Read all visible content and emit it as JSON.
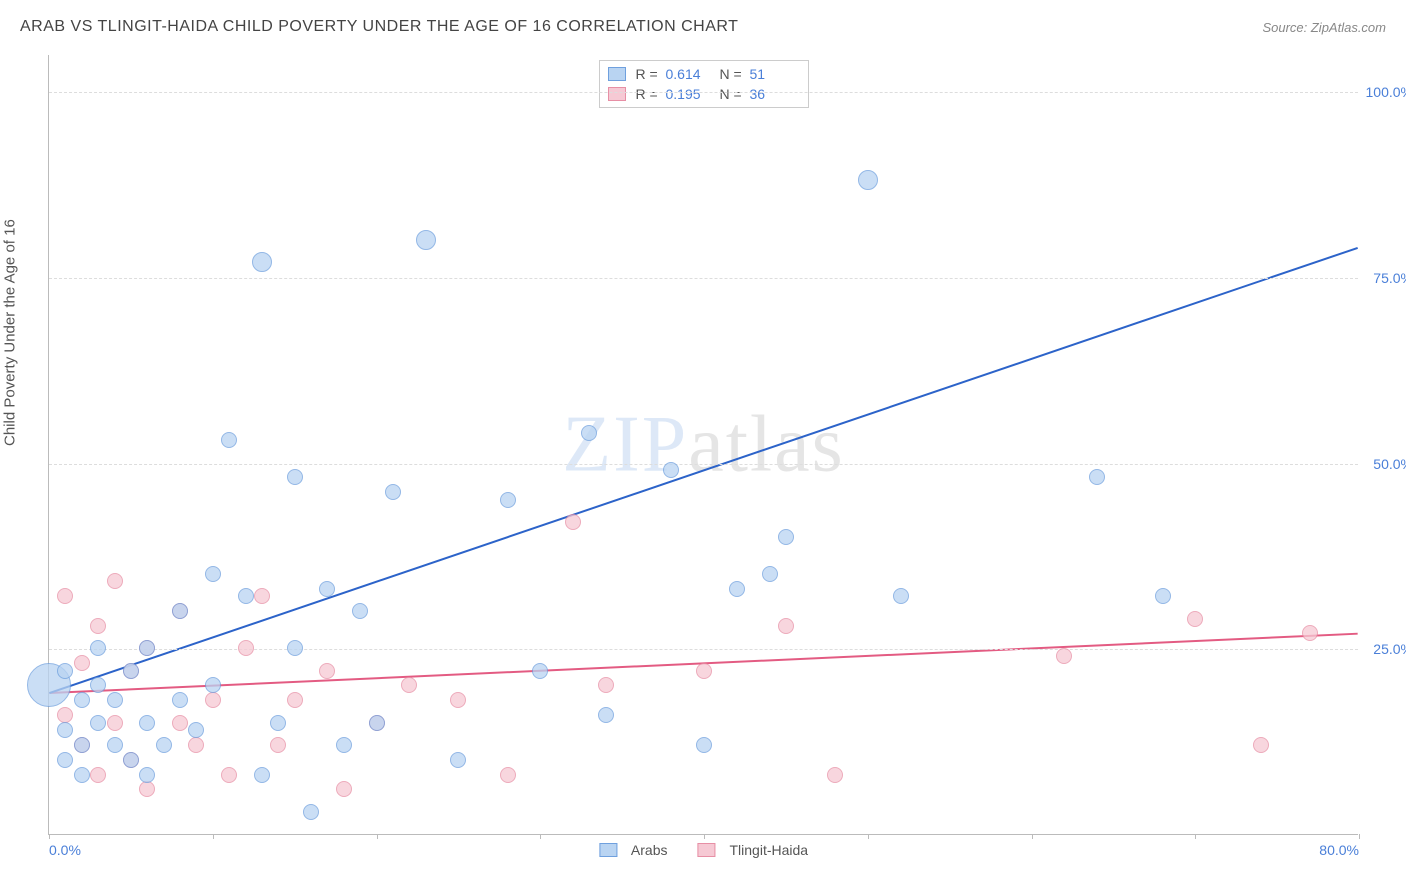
{
  "header": {
    "title": "ARAB VS TLINGIT-HAIDA CHILD POVERTY UNDER THE AGE OF 16 CORRELATION CHART",
    "source_prefix": "Source: ",
    "source": "ZipAtlas.com"
  },
  "watermark": {
    "zip": "ZIP",
    "atlas": "atlas"
  },
  "chart": {
    "ylabel": "Child Poverty Under the Age of 16",
    "xlim": [
      0,
      80
    ],
    "ylim": [
      0,
      105
    ],
    "y_gridlines": [
      25,
      50,
      75,
      100
    ],
    "y_tick_labels": [
      "25.0%",
      "50.0%",
      "75.0%",
      "100.0%"
    ],
    "x_ticks": [
      0,
      10,
      20,
      30,
      40,
      50,
      60,
      70,
      80
    ],
    "x_tick_labels": [
      "0.0%",
      "",
      "",
      "",
      "",
      "",
      "",
      "",
      "80.0%"
    ],
    "background_color": "#ffffff",
    "grid_color": "#dddddd",
    "axis_color": "#bbbbbb",
    "tick_label_color": "#4a7fd8",
    "series": {
      "arabs": {
        "label": "Arabs",
        "fill": "#b9d4f2",
        "stroke": "#6fa0de",
        "trend_color": "#2c63c9",
        "trend_width": 2,
        "R": "0.614",
        "N": "51",
        "trend": {
          "x1": 0,
          "y1": 19,
          "x2": 80,
          "y2": 79
        },
        "marker_radius": 8,
        "points": [
          [
            0,
            20,
            22
          ],
          [
            1,
            14
          ],
          [
            1,
            10
          ],
          [
            1,
            22
          ],
          [
            2,
            18
          ],
          [
            2,
            12
          ],
          [
            2,
            8
          ],
          [
            3,
            15
          ],
          [
            3,
            20
          ],
          [
            3,
            25
          ],
          [
            4,
            12
          ],
          [
            4,
            18
          ],
          [
            5,
            10
          ],
          [
            5,
            22
          ],
          [
            6,
            15
          ],
          [
            6,
            8
          ],
          [
            6,
            25
          ],
          [
            7,
            12
          ],
          [
            8,
            18
          ],
          [
            8,
            30
          ],
          [
            9,
            14
          ],
          [
            10,
            20
          ],
          [
            10,
            35
          ],
          [
            11,
            53
          ],
          [
            12,
            32
          ],
          [
            13,
            8
          ],
          [
            13,
            77,
            10
          ],
          [
            14,
            15
          ],
          [
            15,
            25
          ],
          [
            15,
            48
          ],
          [
            16,
            3
          ],
          [
            17,
            33
          ],
          [
            18,
            12
          ],
          [
            19,
            30
          ],
          [
            20,
            15
          ],
          [
            21,
            46
          ],
          [
            23,
            80,
            10
          ],
          [
            25,
            10
          ],
          [
            28,
            45
          ],
          [
            30,
            22
          ],
          [
            33,
            54
          ],
          [
            34,
            16
          ],
          [
            38,
            49
          ],
          [
            40,
            12
          ],
          [
            42,
            33
          ],
          [
            44,
            35
          ],
          [
            45,
            40
          ],
          [
            50,
            88,
            10
          ],
          [
            52,
            32
          ],
          [
            64,
            48
          ],
          [
            68,
            32
          ]
        ]
      },
      "tlingit": {
        "label": "Tlingit-Haida",
        "fill": "#f6c9d4",
        "stroke": "#e78fa5",
        "trend_color": "#e35b82",
        "trend_width": 2,
        "R": "0.195",
        "N": "36",
        "trend": {
          "x1": 0,
          "y1": 19,
          "x2": 80,
          "y2": 27
        },
        "marker_radius": 8,
        "points": [
          [
            1,
            16
          ],
          [
            1,
            32
          ],
          [
            2,
            23
          ],
          [
            2,
            12
          ],
          [
            3,
            28
          ],
          [
            3,
            8
          ],
          [
            4,
            15
          ],
          [
            4,
            34
          ],
          [
            5,
            22
          ],
          [
            5,
            10
          ],
          [
            6,
            25
          ],
          [
            6,
            6
          ],
          [
            8,
            30
          ],
          [
            8,
            15
          ],
          [
            9,
            12
          ],
          [
            10,
            18
          ],
          [
            11,
            8
          ],
          [
            12,
            25
          ],
          [
            13,
            32
          ],
          [
            14,
            12
          ],
          [
            15,
            18
          ],
          [
            17,
            22
          ],
          [
            18,
            6
          ],
          [
            20,
            15
          ],
          [
            22,
            20
          ],
          [
            25,
            18
          ],
          [
            28,
            8
          ],
          [
            32,
            42
          ],
          [
            34,
            20
          ],
          [
            40,
            22
          ],
          [
            45,
            28
          ],
          [
            48,
            8
          ],
          [
            62,
            24
          ],
          [
            70,
            29
          ],
          [
            74,
            12
          ],
          [
            77,
            27
          ]
        ]
      }
    },
    "legend_top": {
      "R_label": "R =",
      "N_label": "N ="
    }
  }
}
